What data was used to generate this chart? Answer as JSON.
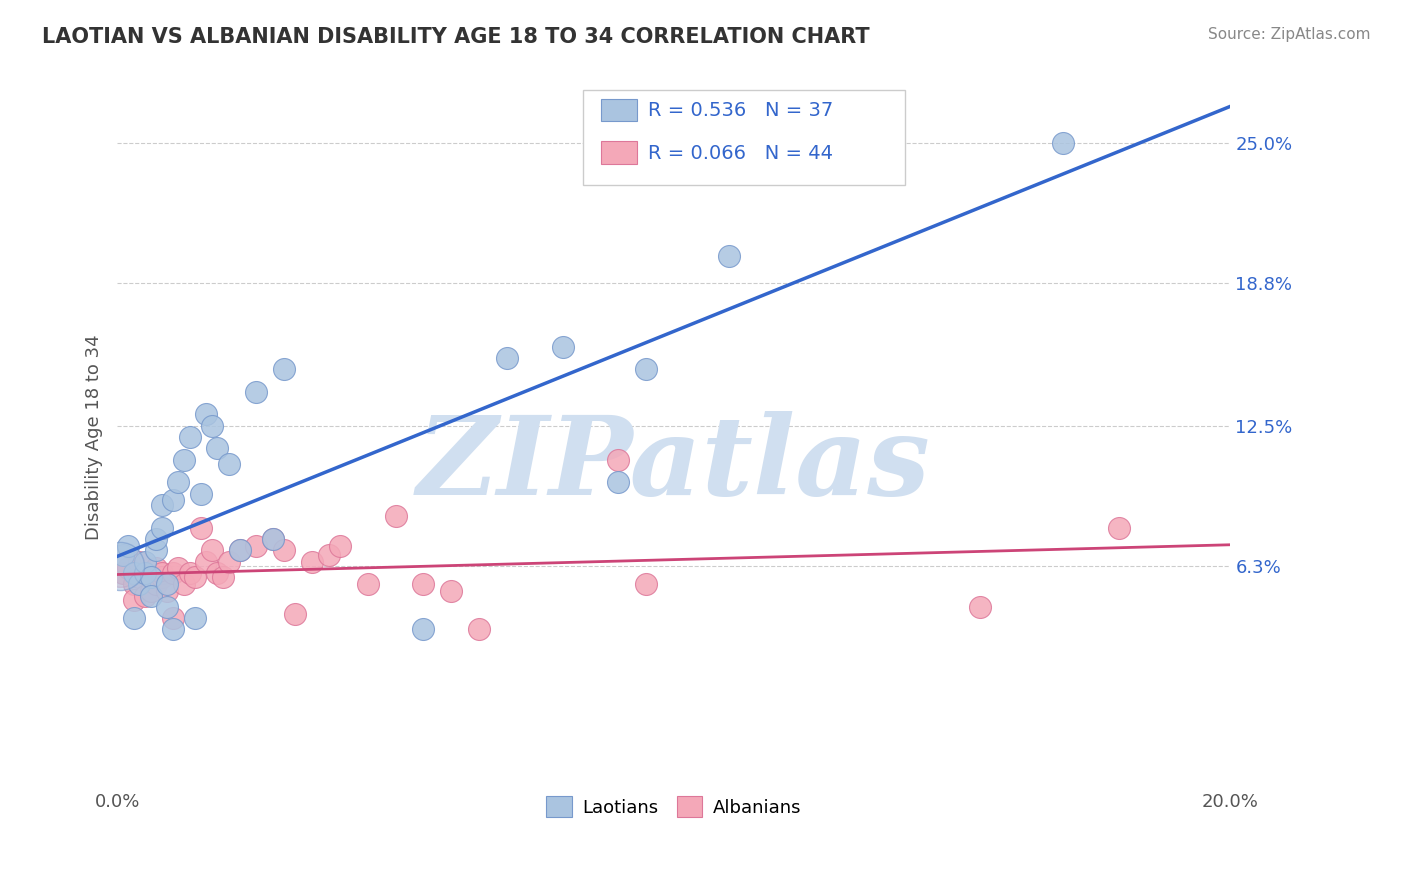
{
  "title": "LAOTIAN VS ALBANIAN DISABILITY AGE 18 TO 34 CORRELATION CHART",
  "source": "Source: ZipAtlas.com",
  "ylabel": "Disability Age 18 to 34",
  "xlim": [
    0.0,
    0.2
  ],
  "ylim": [
    -0.035,
    0.275
  ],
  "ytick_positions": [
    0.063,
    0.125,
    0.188,
    0.25
  ],
  "ytick_labels": [
    "6.3%",
    "12.5%",
    "18.8%",
    "25.0%"
  ],
  "laotian_color": "#aac4e0",
  "albanian_color": "#f4a8b8",
  "regression_blue": "#3366cc",
  "regression_pink": "#cc4477",
  "laotian_R": 0.536,
  "laotian_N": 37,
  "albanian_R": 0.066,
  "albanian_N": 44,
  "watermark": "ZIPatlas",
  "watermark_color": "#d0dff0",
  "legend_label_blue": "Laotians",
  "legend_label_pink": "Albanians",
  "laotian_x": [
    0.001,
    0.002,
    0.003,
    0.003,
    0.004,
    0.005,
    0.005,
    0.006,
    0.006,
    0.007,
    0.007,
    0.008,
    0.008,
    0.009,
    0.009,
    0.01,
    0.01,
    0.011,
    0.012,
    0.013,
    0.014,
    0.015,
    0.016,
    0.017,
    0.018,
    0.02,
    0.022,
    0.025,
    0.028,
    0.03,
    0.055,
    0.07,
    0.08,
    0.09,
    0.095,
    0.11,
    0.17
  ],
  "laotian_y": [
    0.068,
    0.072,
    0.06,
    0.04,
    0.055,
    0.06,
    0.065,
    0.058,
    0.05,
    0.07,
    0.075,
    0.08,
    0.09,
    0.055,
    0.045,
    0.035,
    0.092,
    0.1,
    0.11,
    0.12,
    0.04,
    0.095,
    0.13,
    0.125,
    0.115,
    0.108,
    0.07,
    0.14,
    0.075,
    0.15,
    0.035,
    0.155,
    0.16,
    0.1,
    0.15,
    0.2,
    0.25
  ],
  "albanian_x": [
    0.001,
    0.002,
    0.003,
    0.003,
    0.004,
    0.004,
    0.005,
    0.005,
    0.006,
    0.006,
    0.007,
    0.007,
    0.008,
    0.008,
    0.009,
    0.01,
    0.01,
    0.011,
    0.012,
    0.013,
    0.014,
    0.015,
    0.016,
    0.017,
    0.018,
    0.019,
    0.02,
    0.022,
    0.025,
    0.028,
    0.03,
    0.032,
    0.035,
    0.038,
    0.04,
    0.045,
    0.05,
    0.055,
    0.06,
    0.065,
    0.09,
    0.095,
    0.155,
    0.18
  ],
  "albanian_y": [
    0.06,
    0.062,
    0.055,
    0.048,
    0.058,
    0.065,
    0.05,
    0.06,
    0.052,
    0.058,
    0.055,
    0.062,
    0.058,
    0.06,
    0.052,
    0.04,
    0.06,
    0.062,
    0.055,
    0.06,
    0.058,
    0.08,
    0.065,
    0.07,
    0.06,
    0.058,
    0.065,
    0.07,
    0.072,
    0.075,
    0.07,
    0.042,
    0.065,
    0.068,
    0.072,
    0.055,
    0.085,
    0.055,
    0.052,
    0.035,
    0.11,
    0.055,
    0.045,
    0.08
  ]
}
